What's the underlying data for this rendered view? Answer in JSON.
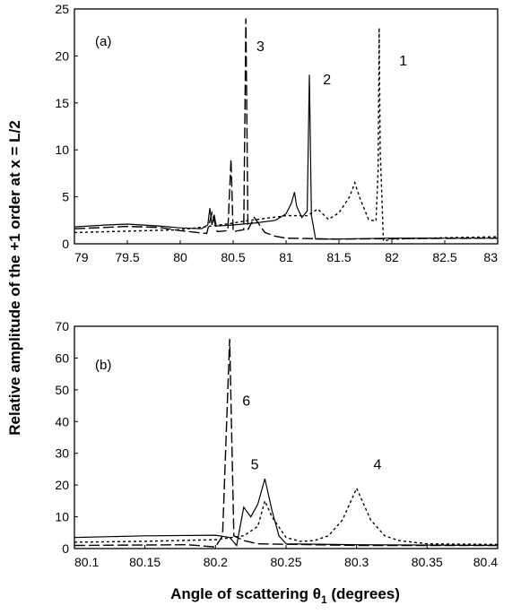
{
  "figure": {
    "ylabel": "Relative amplitude of the +1 order at x = L/2",
    "xlabel_prefix": "Angle of scattering θ",
    "xlabel_sub": "1",
    "xlabel_suffix": " (degrees)"
  },
  "chart_data": [
    {
      "type": "line",
      "panel_label": "(a)",
      "xlim": [
        79,
        83
      ],
      "ylim": [
        0,
        25
      ],
      "xticks": [
        "79",
        "79.5",
        "80",
        "80.5",
        "81",
        "81.5",
        "82",
        "82.5",
        "83"
      ],
      "yticks": [
        "0",
        "5",
        "10",
        "15",
        "20",
        "25"
      ],
      "series": [
        {
          "name": "1",
          "style": "dotted",
          "points": [
            [
              79.0,
              1.2
            ],
            [
              79.5,
              1.35
            ],
            [
              80.0,
              1.5
            ],
            [
              80.3,
              1.9
            ],
            [
              80.5,
              2.2
            ],
            [
              80.6,
              2.4
            ],
            [
              80.8,
              2.7
            ],
            [
              81.0,
              3.0
            ],
            [
              81.2,
              3.0
            ],
            [
              81.3,
              3.7
            ],
            [
              81.4,
              2.6
            ],
            [
              81.5,
              3.3
            ],
            [
              81.6,
              5.0
            ],
            [
              81.65,
              6.5
            ],
            [
              81.7,
              4.8
            ],
            [
              81.78,
              2.6
            ],
            [
              81.85,
              2.4
            ],
            [
              81.87,
              8
            ],
            [
              81.88,
              23
            ],
            [
              81.89,
              10
            ],
            [
              81.92,
              0.3
            ],
            [
              82.0,
              0.5
            ],
            [
              82.5,
              0.65
            ],
            [
              83.0,
              0.75
            ]
          ]
        },
        {
          "name": "2",
          "style": "solid",
          "points": [
            [
              79.0,
              1.8
            ],
            [
              79.3,
              2.0
            ],
            [
              79.5,
              2.1
            ],
            [
              79.8,
              1.9
            ],
            [
              80.0,
              1.7
            ],
            [
              80.2,
              1.6
            ],
            [
              80.26,
              2.0
            ],
            [
              80.28,
              3.8
            ],
            [
              80.3,
              2.0
            ],
            [
              80.32,
              3.1
            ],
            [
              80.34,
              1.9
            ],
            [
              80.5,
              2.0
            ],
            [
              80.7,
              2.2
            ],
            [
              80.9,
              2.5
            ],
            [
              81.0,
              3.2
            ],
            [
              81.05,
              4.3
            ],
            [
              81.08,
              5.5
            ],
            [
              81.1,
              4.0
            ],
            [
              81.15,
              2.8
            ],
            [
              81.2,
              3.5
            ],
            [
              81.22,
              18
            ],
            [
              81.24,
              3.0
            ],
            [
              81.28,
              0.5
            ],
            [
              81.4,
              0.5
            ],
            [
              82.0,
              0.6
            ],
            [
              83.0,
              0.6
            ]
          ]
        },
        {
          "name": "3",
          "style": "dashed",
          "points": [
            [
              79.0,
              1.6
            ],
            [
              79.5,
              1.85
            ],
            [
              79.8,
              1.75
            ],
            [
              80.0,
              1.4
            ],
            [
              80.25,
              1.1
            ],
            [
              80.3,
              3.3
            ],
            [
              80.35,
              1.3
            ],
            [
              80.45,
              1.4
            ],
            [
              80.48,
              9.0
            ],
            [
              80.5,
              1.3
            ],
            [
              80.6,
              1.5
            ],
            [
              80.62,
              24
            ],
            [
              80.64,
              1.5
            ],
            [
              80.7,
              2.8
            ],
            [
              80.8,
              1.2
            ],
            [
              80.9,
              0.8
            ],
            [
              81.0,
              0.6
            ],
            [
              81.5,
              0.5
            ],
            [
              82.0,
              0.55
            ],
            [
              83.0,
              0.6
            ]
          ]
        }
      ]
    },
    {
      "type": "line",
      "panel_label": "(b)",
      "xlim": [
        80.1,
        80.4
      ],
      "ylim": [
        0,
        70
      ],
      "xticks": [
        "80.1",
        "80.15",
        "80.2",
        "80.25",
        "80.3",
        "80.35",
        "80.4"
      ],
      "yticks": [
        "0",
        "10",
        "20",
        "30",
        "40",
        "50",
        "60",
        "70"
      ],
      "series": [
        {
          "name": "4",
          "style": "dotted",
          "points": [
            [
              80.1,
              2.0
            ],
            [
              80.15,
              2.3
            ],
            [
              80.2,
              2.8
            ],
            [
              80.22,
              4.0
            ],
            [
              80.23,
              7.0
            ],
            [
              80.235,
              15
            ],
            [
              80.24,
              10
            ],
            [
              80.25,
              3.5
            ],
            [
              80.26,
              2.3
            ],
            [
              80.27,
              2.5
            ],
            [
              80.28,
              4.0
            ],
            [
              80.29,
              9.0
            ],
            [
              80.3,
              19
            ],
            [
              80.31,
              9.0
            ],
            [
              80.32,
              4.0
            ],
            [
              80.33,
              2.5
            ],
            [
              80.35,
              1.5
            ],
            [
              80.4,
              1.3
            ]
          ]
        },
        {
          "name": "5",
          "style": "solid",
          "points": [
            [
              80.1,
              3.5
            ],
            [
              80.15,
              4.0
            ],
            [
              80.2,
              4.2
            ],
            [
              80.21,
              3.5
            ],
            [
              80.215,
              1.0
            ],
            [
              80.22,
              13
            ],
            [
              80.225,
              10
            ],
            [
              80.23,
              14
            ],
            [
              80.235,
              22
            ],
            [
              80.24,
              12
            ],
            [
              80.245,
              4.0
            ],
            [
              80.25,
              1.5
            ],
            [
              80.3,
              1.2
            ],
            [
              80.4,
              1.0
            ]
          ]
        },
        {
          "name": "6",
          "style": "dashed",
          "points": [
            [
              80.1,
              1.0
            ],
            [
              80.18,
              1.2
            ],
            [
              80.2,
              0.5
            ],
            [
              80.205,
              4
            ],
            [
              80.21,
              66
            ],
            [
              80.213,
              4
            ],
            [
              80.22,
              2.5
            ],
            [
              80.23,
              1.5
            ],
            [
              80.3,
              1.0
            ],
            [
              80.4,
              1.0
            ]
          ]
        }
      ]
    }
  ],
  "annotations": {
    "a": [
      {
        "text": "3",
        "x": 80.72,
        "y": 20.5
      },
      {
        "text": "2",
        "x": 81.35,
        "y": 17
      },
      {
        "text": "1",
        "x": 82.07,
        "y": 19
      }
    ],
    "b": [
      {
        "text": "6",
        "x": 80.219,
        "y": 45
      },
      {
        "text": "5",
        "x": 80.225,
        "y": 25
      },
      {
        "text": "4",
        "x": 80.312,
        "y": 25
      }
    ]
  }
}
